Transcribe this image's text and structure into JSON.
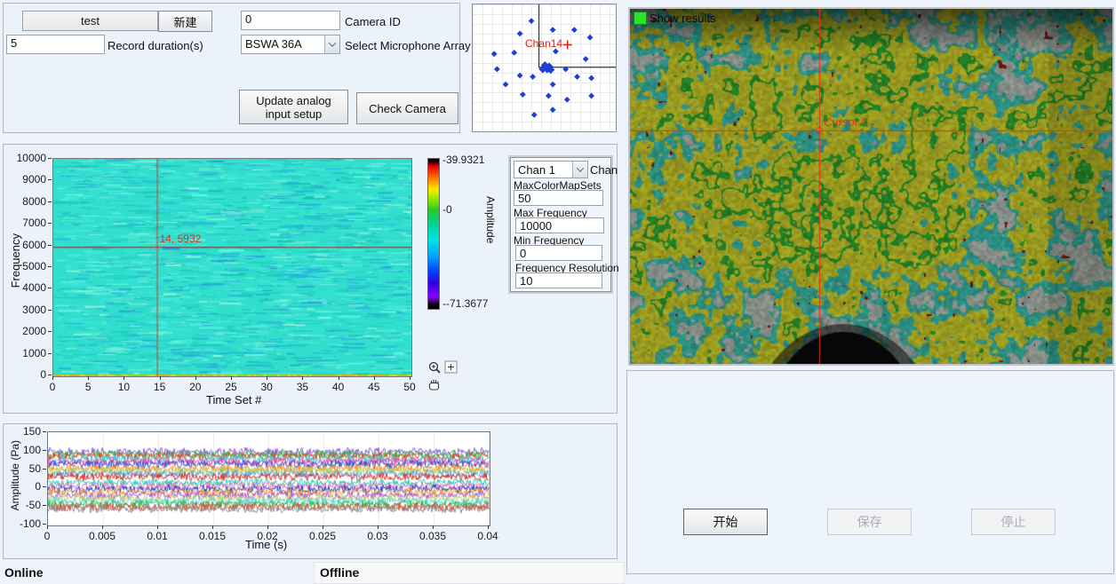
{
  "config_panel": {
    "test_field": "test",
    "new_button": "新建",
    "record_duration_value": "5",
    "record_duration_label": "Record duration(s)",
    "camera_id_value": "0",
    "camera_id_label": "Camera ID",
    "mic_array_value": "BSWA 36A",
    "mic_array_label": "Select Microphone Array",
    "update_button": "Update analog input setup",
    "check_camera_button": "Check Camera"
  },
  "spectro_controls": {
    "chan_value": "Chan 1",
    "chan_label": "Chan",
    "max_colormap_label": "MaxColorMapSets",
    "max_colormap_value": "50",
    "max_freq_label": "Max Frequency",
    "max_freq_value": "10000",
    "min_freq_label": "Min Frequency",
    "min_freq_value": "0",
    "freq_res_label": "Frequency Resolution",
    "freq_res_value": "10"
  },
  "camera_view": {
    "show_results_label": "Show results",
    "led_color": "#2ae32a"
  },
  "actions": {
    "start_button": "开始",
    "save_button": "保存",
    "stop_button": "停止"
  },
  "tabs": {
    "online": "Online",
    "offline": "Offline"
  },
  "chart_data": [
    {
      "type": "scatter",
      "title": "microphone-array-layout",
      "marker": "diamond",
      "marker_color": "#1f3fd0",
      "cursor": {
        "label": "Chan14",
        "x": 0.663,
        "y": 0.318,
        "color": "#dd2211"
      },
      "axes_cross": {
        "x": 0.463,
        "y": 0.495
      },
      "points": [
        [
          0.41,
          0.13
        ],
        [
          0.56,
          0.2
        ],
        [
          0.71,
          0.2
        ],
        [
          0.33,
          0.23
        ],
        [
          0.82,
          0.26
        ],
        [
          0.58,
          0.37
        ],
        [
          0.29,
          0.38
        ],
        [
          0.15,
          0.39
        ],
        [
          0.79,
          0.43
        ],
        [
          0.17,
          0.51
        ],
        [
          0.65,
          0.51
        ],
        [
          0.33,
          0.56
        ],
        [
          0.42,
          0.57
        ],
        [
          0.73,
          0.57
        ],
        [
          0.83,
          0.58
        ],
        [
          0.23,
          0.63
        ],
        [
          0.56,
          0.63
        ],
        [
          0.35,
          0.71
        ],
        [
          0.53,
          0.72
        ],
        [
          0.66,
          0.75
        ],
        [
          0.83,
          0.72
        ],
        [
          0.43,
          0.87
        ],
        [
          0.56,
          0.83
        ]
      ],
      "center_cluster": [
        [
          0.505,
          0.48
        ],
        [
          0.535,
          0.49
        ],
        [
          0.52,
          0.51
        ],
        [
          0.49,
          0.51
        ],
        [
          0.545,
          0.515
        ]
      ]
    },
    {
      "type": "heatmap",
      "title": "spectrogram",
      "xlabel": "Time Set #",
      "ylabel": "Frequency",
      "xlim": [
        0,
        50
      ],
      "ylim": [
        0,
        10000
      ],
      "x_ticks": [
        0,
        5,
        10,
        15,
        20,
        25,
        30,
        35,
        40,
        45,
        50
      ],
      "y_ticks": [
        0,
        1000,
        2000,
        3000,
        4000,
        5000,
        6000,
        7000,
        8000,
        9000,
        10000
      ],
      "cursor": {
        "x": 14.5,
        "y": 5932,
        "label": "14, 5932",
        "color": "#e02f1a",
        "hline_color": "#8a2a18"
      },
      "base_color": "#32dfce",
      "streak_colors": [
        "#29d9c7",
        "#43ead8",
        "#1cccbd",
        "#58f0e0",
        "#34e2d0",
        "#23b6d6",
        "#12c2b4",
        "#6df4e6",
        "#2a9bdf",
        "#8ff5d8"
      ],
      "bottom_band_colors": [
        "#c8d81c",
        "#e2a61a",
        "#7fd824"
      ],
      "colorbar": {
        "label": "Amplitude",
        "max_label": "-39.9321",
        "mid_label": "-0",
        "min_label": "--71.3677",
        "stops": [
          [
            0,
            "#000000"
          ],
          [
            0.02,
            "#300000"
          ],
          [
            0.05,
            "#f00000"
          ],
          [
            0.13,
            "#ff7800"
          ],
          [
            0.2,
            "#ffe800"
          ],
          [
            0.27,
            "#8ee800"
          ],
          [
            0.34,
            "#28c828"
          ],
          [
            0.44,
            "#00d49a"
          ],
          [
            0.54,
            "#00e2e2"
          ],
          [
            0.65,
            "#00a2ff"
          ],
          [
            0.75,
            "#0040ff"
          ],
          [
            0.83,
            "#3000e0"
          ],
          [
            0.92,
            "#8800ff"
          ],
          [
            0.97,
            "#100010"
          ],
          [
            1,
            "#000000"
          ]
        ]
      }
    },
    {
      "type": "line",
      "title": "time-domain-channels",
      "xlabel": "Time (s)",
      "ylabel": "Amplitude (Pa)",
      "xlim": [
        0,
        0.04
      ],
      "ylim": [
        -100,
        150
      ],
      "x_ticks": [
        0,
        0.005,
        0.01,
        0.015,
        0.02,
        0.025,
        0.03,
        0.035,
        0.04
      ],
      "y_ticks": [
        150,
        100,
        50,
        0,
        -50,
        -100
      ],
      "noise_amplitude_pa": 10,
      "series_baselines": [
        97,
        90,
        84,
        77,
        70,
        63,
        52,
        45,
        38,
        30,
        13,
        4,
        -4,
        -12,
        -21,
        -29,
        -37,
        -45,
        -52,
        -57
      ],
      "series_colors": [
        "#9757e8",
        "#2bc23c",
        "#e8402c",
        "#3fd0e8",
        "#e84fa8",
        "#3a50d8",
        "#f09428",
        "#bcd455",
        "#52a8e8",
        "#e03028",
        "#2ad0b8",
        "#f070b8",
        "#2840c8",
        "#f0a030",
        "#a858e0",
        "#c8d860",
        "#58d8e8",
        "#30c050",
        "#e04838",
        "#909090"
      ]
    },
    {
      "type": "heatmap",
      "title": "acoustic-camera-overlay",
      "cursor": {
        "label": "Cursor 0",
        "x": 0.392,
        "y": 0.342,
        "color": "#e83018"
      },
      "band_palette": {
        "gray": "#aeb6ae",
        "teal": "#38b6a6",
        "yellow": "#c6c62a",
        "green": "#2ca330",
        "red": "#8e1c10"
      },
      "overlay_darkness": 0.78
    }
  ]
}
